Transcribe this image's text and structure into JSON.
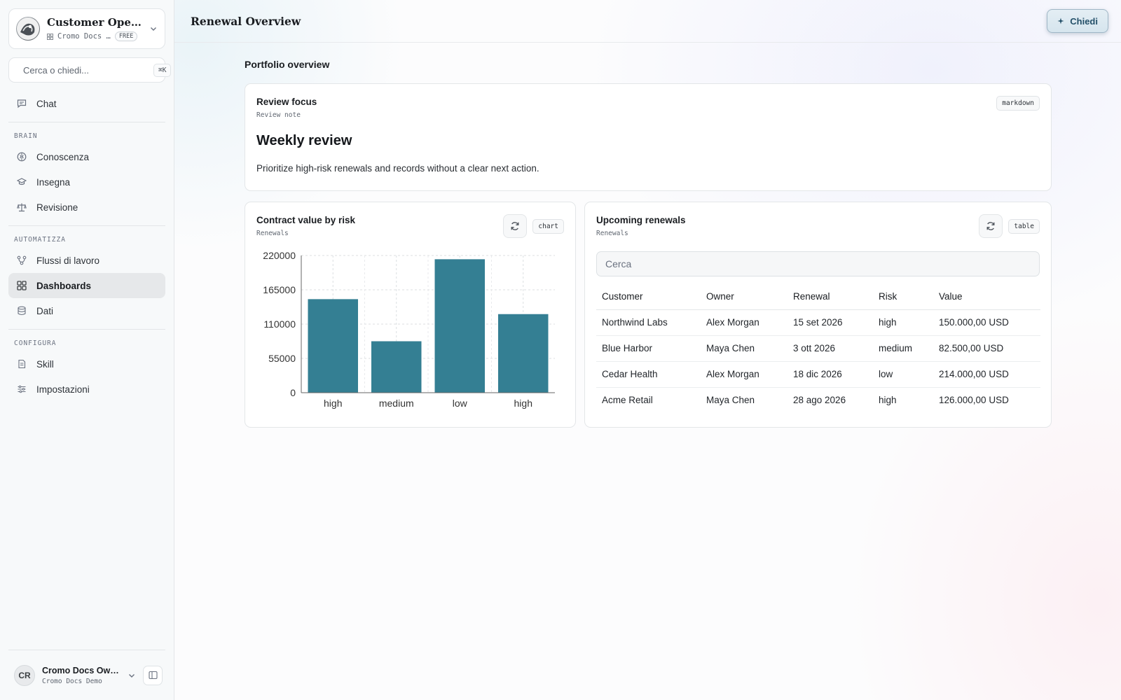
{
  "sidebar": {
    "workspace": {
      "title": "Customer Operati...",
      "org": "Cromo Docs …",
      "plan": "FREE"
    },
    "search": {
      "placeholder": "Cerca o chiedi...",
      "shortcut": "⌘K"
    },
    "items_top": [
      {
        "label": "Chat",
        "icon": "chat-icon"
      }
    ],
    "sections": [
      {
        "label": "BRAIN",
        "items": [
          {
            "label": "Conoscenza",
            "icon": "brain-icon"
          },
          {
            "label": "Insegna",
            "icon": "graduation-cap-icon"
          },
          {
            "label": "Revisione",
            "icon": "scale-icon"
          }
        ]
      },
      {
        "label": "AUTOMATIZZA",
        "items": [
          {
            "label": "Flussi di lavoro",
            "icon": "workflow-icon"
          },
          {
            "label": "Dashboards",
            "icon": "dashboard-grid-icon",
            "active": true
          },
          {
            "label": "Dati",
            "icon": "database-icon"
          }
        ]
      },
      {
        "label": "CONFIGURA",
        "items": [
          {
            "label": "Skill",
            "icon": "skill-icon"
          },
          {
            "label": "Impostazioni",
            "icon": "sliders-icon"
          }
        ]
      }
    ],
    "user": {
      "initials": "CR",
      "name": "Cromo Docs Own...",
      "org": "Cromo Docs Demo"
    }
  },
  "header": {
    "title": "Renewal Overview",
    "ask_label": "Chiedi"
  },
  "main": {
    "section_title": "Portfolio overview",
    "review_card": {
      "title": "Review focus",
      "subtitle": "Review note",
      "type": "markdown",
      "heading": "Weekly review",
      "body": "Prioritize high-risk renewals and records without a clear next action."
    },
    "chart_card": {
      "title": "Contract value by risk",
      "subtitle": "Renewals",
      "type": "chart"
    },
    "table_card": {
      "title": "Upcoming renewals",
      "subtitle": "Renewals",
      "type": "table",
      "search_placeholder": "Cerca",
      "columns": [
        "Customer",
        "Owner",
        "Renewal",
        "Risk",
        "Value"
      ],
      "rows": [
        [
          "Northwind Labs",
          "Alex Morgan",
          "15 set 2026",
          "high",
          "150.000,00 USD"
        ],
        [
          "Blue Harbor",
          "Maya Chen",
          "3 ott 2026",
          "medium",
          "82.500,00 USD"
        ],
        [
          "Cedar Health",
          "Alex Morgan",
          "18 dic 2026",
          "low",
          "214.000,00 USD"
        ],
        [
          "Acme Retail",
          "Maya Chen",
          "28 ago 2026",
          "high",
          "126.000,00 USD"
        ]
      ]
    }
  },
  "colors": {
    "bar": "#347f93",
    "active_nav": "#e6e8ea",
    "accent_text": "#245069"
  },
  "chart_data": {
    "type": "bar",
    "categories": [
      "high",
      "medium",
      "low",
      "high"
    ],
    "values": [
      150000,
      82500,
      214000,
      126000
    ],
    "title": "Contract value by risk",
    "xlabel": "",
    "ylabel": "",
    "ylim": [
      0,
      220000
    ],
    "yticks": [
      "0",
      "55000",
      "110000",
      "165000",
      "220000"
    ],
    "grid": true,
    "legend": "none"
  }
}
